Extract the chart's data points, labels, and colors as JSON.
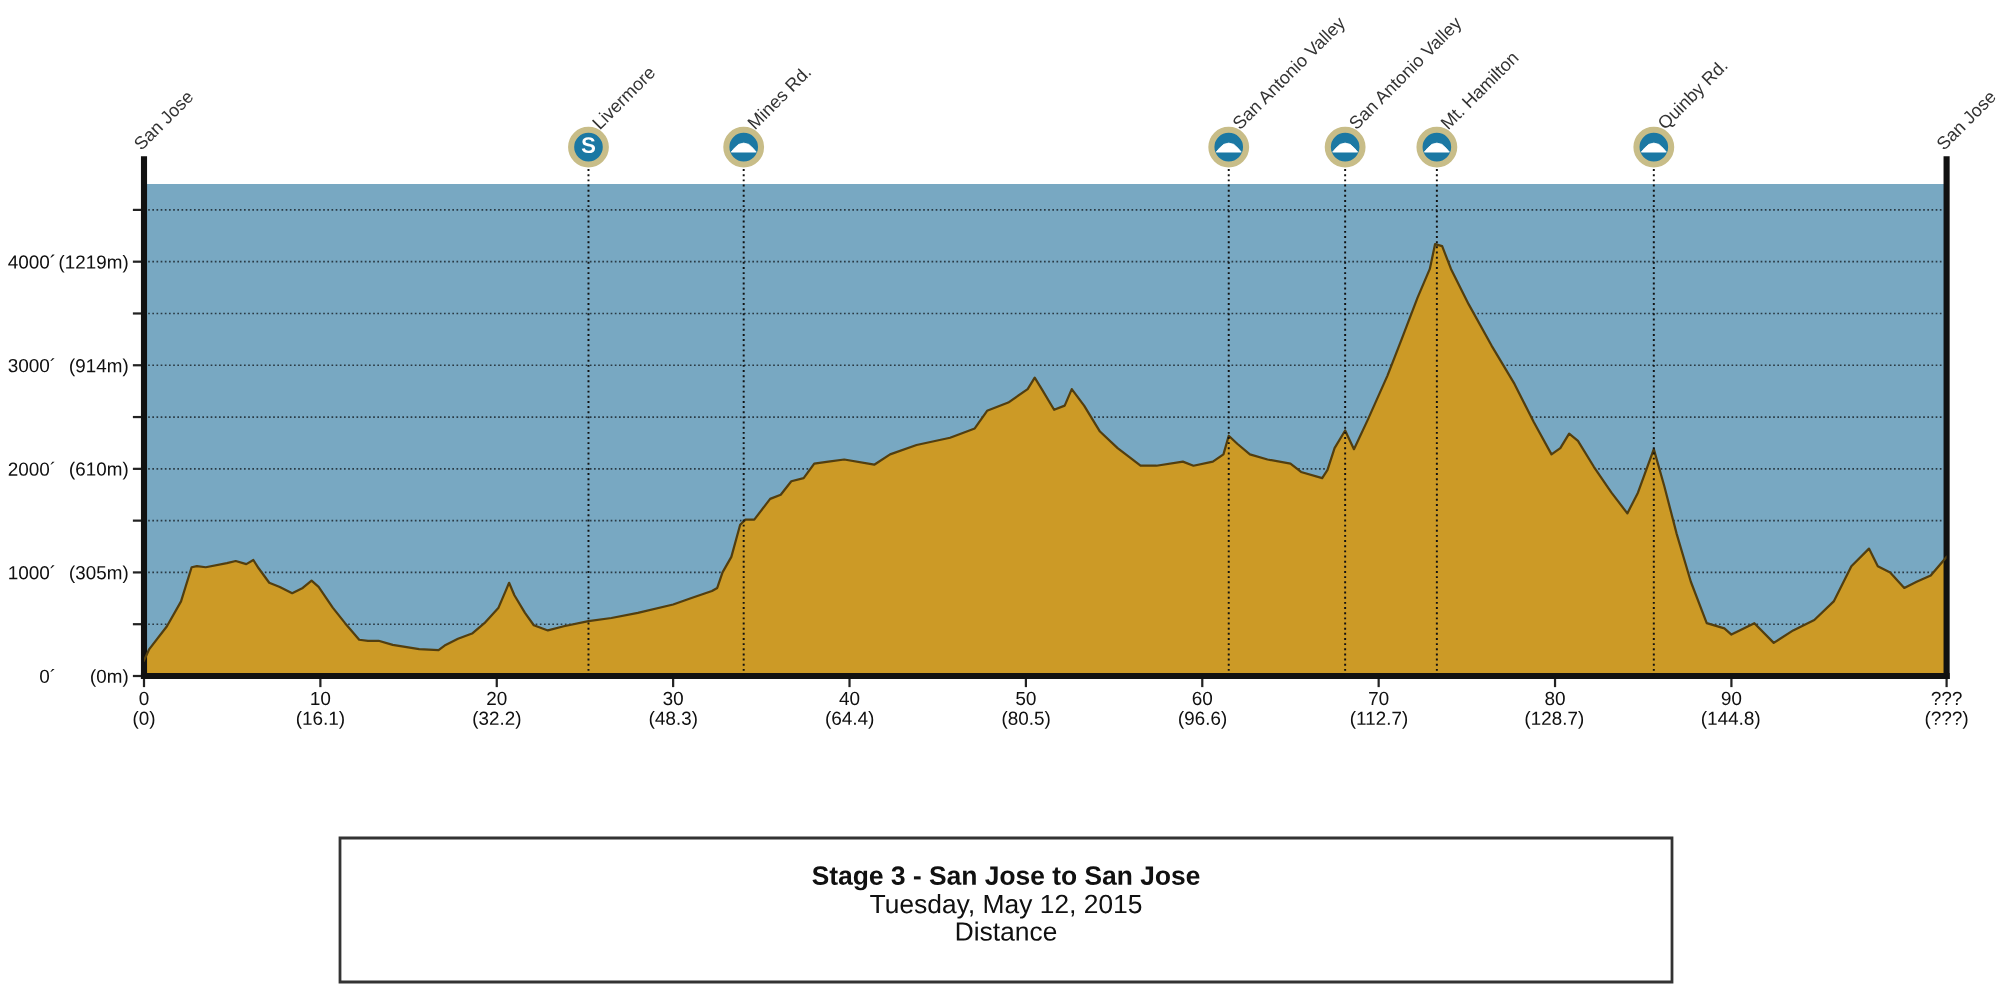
{
  "chart_data": {
    "type": "area",
    "title": "Stage 3 - San Jose to San Jose",
    "subtitle": "Tuesday, May 12, 2015\nDistance",
    "x": [
      0,
      0.3,
      1.3,
      2.1,
      2.7,
      3.0,
      3.5,
      4.7,
      5.2,
      5.8,
      6.2,
      6.5,
      7.1,
      7.7,
      8.4,
      9.0,
      9.5,
      9.9,
      10.7,
      11.4,
      12.2,
      12.7,
      13.3,
      14.1,
      15.6,
      16.7,
      17.1,
      17.8,
      18.6,
      19.3,
      20.1,
      20.5,
      20.7,
      21.0,
      21.6,
      22.1,
      22.9,
      23.8,
      25.2,
      26.5,
      28.0,
      30.0,
      31.0,
      32.2,
      32.5,
      32.8,
      33.3,
      33.8,
      34.1,
      34.6,
      35.5,
      36.1,
      36.7,
      37.4,
      38.0,
      38.8,
      39.7,
      41.4,
      42.3,
      43.8,
      45.7,
      47.1,
      47.8,
      49.0,
      50.1,
      50.5,
      50.9,
      51.6,
      52.2,
      52.6,
      53.3,
      54.2,
      55.2,
      56.5,
      57.4,
      58.9,
      59.5,
      60.6,
      61.2,
      61.5,
      62.0,
      62.7,
      63.7,
      65.0,
      65.6,
      66.8,
      67.1,
      67.5,
      68.1,
      68.6,
      69.4,
      70.5,
      71.3,
      72.2,
      72.9,
      73.2,
      73.6,
      74.1,
      75.1,
      76.4,
      77.7,
      78.8,
      79.8,
      80.3,
      80.8,
      81.3,
      82.2,
      83.2,
      84.1,
      84.7,
      85.6,
      86.2,
      86.9,
      87.7,
      88.6,
      89.6,
      90.0,
      91.3,
      92.4,
      93.5,
      94.7,
      95.8,
      96.8,
      97.8,
      98.3,
      99.0,
      99.8,
      100.5,
      101.3,
      102.2
    ],
    "series": [
      {
        "color": "#cc9a26",
        "values": [
          150,
          260,
          480,
          720,
          1050,
          1060,
          1050,
          1090,
          1110,
          1080,
          1120,
          1040,
          900,
          860,
          800,
          850,
          920,
          860,
          660,
          510,
          350,
          340,
          340,
          300,
          260,
          250,
          300,
          360,
          410,
          510,
          660,
          820,
          900,
          780,
          610,
          490,
          440,
          480,
          530,
          560,
          610,
          690,
          750,
          820,
          850,
          1000,
          1150,
          1460,
          1510,
          1510,
          1710,
          1750,
          1880,
          1910,
          2050,
          2070,
          2090,
          2040,
          2140,
          2230,
          2300,
          2390,
          2560,
          2640,
          2770,
          2880,
          2770,
          2570,
          2610,
          2770,
          2610,
          2360,
          2200,
          2030,
          2030,
          2070,
          2030,
          2070,
          2140,
          2320,
          2240,
          2140,
          2090,
          2050,
          1970,
          1910,
          1990,
          2200,
          2370,
          2190,
          2480,
          2900,
          3250,
          3650,
          3930,
          4170,
          4150,
          3930,
          3590,
          3190,
          2820,
          2450,
          2140,
          2200,
          2340,
          2270,
          2020,
          1770,
          1570,
          1770,
          2190,
          1830,
          1370,
          910,
          510,
          460,
          400,
          510,
          320,
          440,
          540,
          720,
          1060,
          1230,
          1060,
          1000,
          850,
          910,
          970,
          1150
        ]
      }
    ],
    "xlim": [
      0,
      102.2
    ],
    "xticks": [
      0,
      10,
      20,
      30,
      40,
      50,
      60,
      70,
      80,
      90,
      {
        "value": 102.2,
        "label": "???"
      }
    ],
    "x2lim": [
      0,
      164.5
    ],
    "x2ticks": [
      {
        "value": 0,
        "label": "(0)"
      },
      {
        "value": 16.1,
        "label": "(16.1)"
      },
      {
        "value": 32.2,
        "label": "(32.2)"
      },
      {
        "value": 48.3,
        "label": "(48.3)"
      },
      {
        "value": 64.4,
        "label": "(64.4)"
      },
      {
        "value": 80.5,
        "label": "(80.5)"
      },
      {
        "value": 96.6,
        "label": "(96.6)"
      },
      {
        "value": 112.7,
        "label": "(112.7)"
      },
      {
        "value": 128.7,
        "label": "(128.7)"
      },
      {
        "value": 144.8,
        "label": "(144.8)"
      },
      {
        "value": 164.5,
        "label": "(???)"
      }
    ],
    "ylim": [
      0,
      4750
    ],
    "yticks": [
      {
        "value": 0,
        "label": "0´"
      },
      {
        "value": 500,
        "label": null
      },
      {
        "value": 1000,
        "label": "1000´"
      },
      {
        "value": 1500,
        "label": null
      },
      {
        "value": 2000,
        "label": "2000´"
      },
      {
        "value": 2500,
        "label": null
      },
      {
        "value": 3000,
        "label": "3000´"
      },
      {
        "value": 3500,
        "label": null
      },
      {
        "value": 4000,
        "label": "4000´"
      },
      {
        "value": 4500,
        "label": null
      }
    ],
    "y2lim": [
      0,
      1447.8
    ],
    "y2ticks": [
      {
        "value": 0,
        "label": "(0m)"
      },
      {
        "value": 305,
        "label": "(305m)"
      },
      {
        "value": 610,
        "label": "(610m)"
      },
      {
        "value": 914,
        "label": "(914m)"
      },
      {
        "value": 1219,
        "label": "(1219m)"
      }
    ],
    "grid": "y",
    "ref_lines": [
      {
        "axis": "x",
        "value": 25.2,
        "label": "Livermore",
        "line_style": "dotted"
      },
      {
        "axis": "x",
        "value": 34.0,
        "label": "Mines Rd.",
        "line_style": "dotted"
      },
      {
        "axis": "x",
        "value": 61.5,
        "label": "San Antonio Valley",
        "line_style": "dotted"
      },
      {
        "axis": "x",
        "value": 68.1,
        "label": "San Antonio Valley",
        "line_style": "dotted"
      },
      {
        "axis": "x",
        "value": 73.3,
        "label": "Mt. Hamilton",
        "line_style": "dotted"
      },
      {
        "axis": "x",
        "value": 85.6,
        "label": "Quinby Rd.",
        "line_style": "dotted"
      }
    ],
    "annotations": [
      "San Jose",
      "S",
      "San Jose"
    ]
  }
}
